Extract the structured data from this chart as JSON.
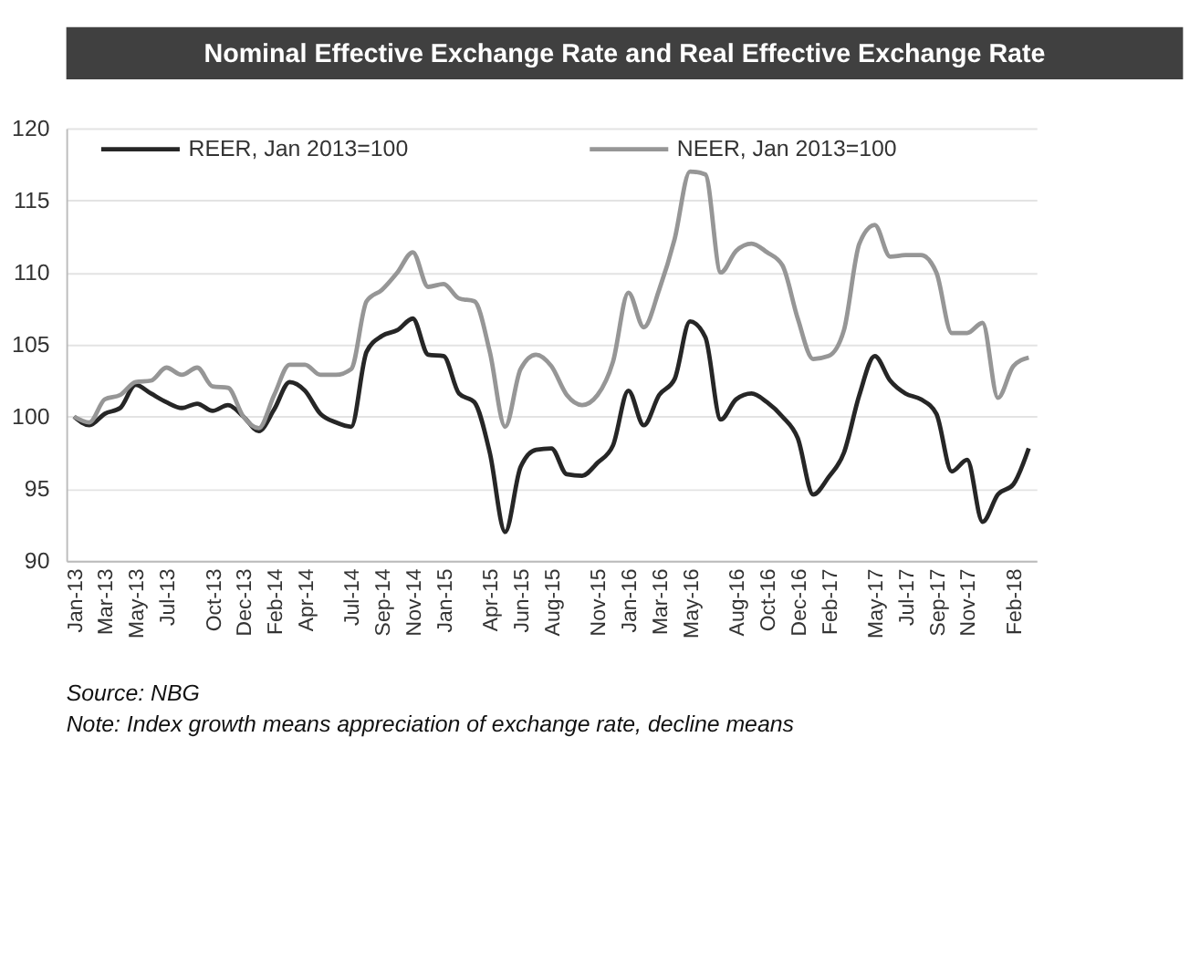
{
  "chart_data": {
    "type": "line",
    "title": "Nominal Effective Exchange Rate and Real Effective Exchange Rate",
    "categories": [
      "Jan-13",
      null,
      "Mar-13",
      null,
      "May-13",
      null,
      "Jul-13",
      null,
      null,
      "Oct-13",
      null,
      "Dec-13",
      null,
      "Feb-14",
      null,
      "Apr-14",
      null,
      null,
      "Jul-14",
      null,
      "Sep-14",
      null,
      "Nov-14",
      null,
      "Jan-15",
      null,
      null,
      "Apr-15",
      null,
      "Jun-15",
      null,
      "Aug-15",
      null,
      null,
      "Nov-15",
      null,
      "Jan-16",
      null,
      "Mar-16",
      null,
      "May-16",
      null,
      null,
      "Aug-16",
      null,
      "Oct-16",
      null,
      "Dec-16",
      null,
      "Feb-17",
      null,
      null,
      "May-17",
      null,
      "Jul-17",
      null,
      "Sep-17",
      null,
      "Nov-17",
      null,
      null,
      "Feb-18",
      null
    ],
    "series": [
      {
        "name": "REER, Jan 2013=100",
        "color": "#262626",
        "values": [
          100,
          99.4,
          100.2,
          100.6,
          102.2,
          101.6,
          101.0,
          100.6,
          100.9,
          100.4,
          100.8,
          100.0,
          99.0,
          100.5,
          102.4,
          101.8,
          100.2,
          99.6,
          99.3,
          104.5,
          105.6,
          106.0,
          106.8,
          104.3,
          104.2,
          101.6,
          101.0,
          97.5,
          92.0,
          96.5,
          97.7,
          97.8,
          96.0,
          95.9,
          96.8,
          98.0,
          101.8,
          99.4,
          101.5,
          102.6,
          106.6,
          105.5,
          99.8,
          101.2,
          101.6,
          101.0,
          100.0,
          98.5,
          94.6,
          95.8,
          97.5,
          101.5,
          104.2,
          102.5,
          101.6,
          101.2,
          100.2,
          96.2,
          97.0,
          92.7,
          94.6,
          95.3,
          97.8
        ]
      },
      {
        "name": "NEER, Jan 2013=100",
        "color": "#969696",
        "values": [
          100,
          99.6,
          101.2,
          101.5,
          102.4,
          102.5,
          103.4,
          102.9,
          103.4,
          102.1,
          102.0,
          100.0,
          99.2,
          101.5,
          103.6,
          103.6,
          102.9,
          102.9,
          103.3,
          108.0,
          108.8,
          110.0,
          111.4,
          109.0,
          109.2,
          108.2,
          108.0,
          104.5,
          99.3,
          103.3,
          104.3,
          103.5,
          101.5,
          100.8,
          101.5,
          103.8,
          108.6,
          106.2,
          108.8,
          112.3,
          117.0,
          116.8,
          110.0,
          111.5,
          112.0,
          111.4,
          110.5,
          106.8,
          104.0,
          104.2,
          106.0,
          112.0,
          113.3,
          111.1,
          111.2,
          111.2,
          110.0,
          105.8,
          105.8,
          106.5,
          101.3,
          103.5,
          104.1
        ]
      }
    ],
    "ylim": [
      90,
      120
    ],
    "yticks": [
      90,
      95,
      100,
      105,
      110,
      115,
      120
    ],
    "grid": "y",
    "legend": "top",
    "marker": "none",
    "line_style": "solid",
    "annotations": [
      "Source: NBG",
      "Note: Index growth means appreciation of exchange rate, decline means"
    ]
  }
}
